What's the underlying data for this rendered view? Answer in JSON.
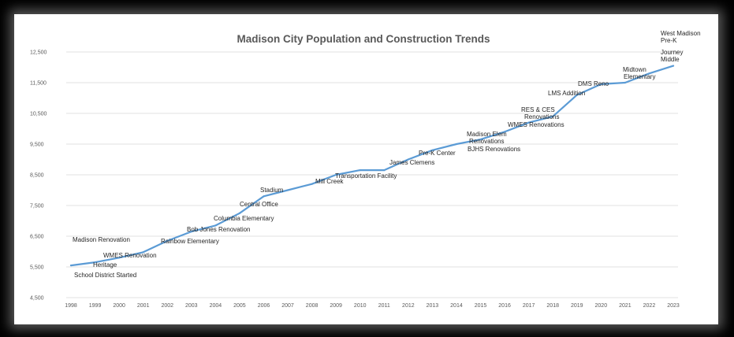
{
  "chart_data": {
    "type": "line",
    "title": "Madison City Population and Construction Trends",
    "xlabel": "",
    "ylabel": "",
    "ylim": [
      4500,
      12500
    ],
    "yticks": [
      "4,500",
      "5,500",
      "6,500",
      "7,500",
      "8,500",
      "9,500",
      "10,500",
      "11,500",
      "12,500"
    ],
    "grid": true,
    "legend": "none",
    "line_color": "#5b9bd5",
    "x": [
      "1998",
      "1999",
      "2000",
      "2001",
      "2002",
      "2003",
      "2004",
      "2005",
      "2006",
      "2007",
      "2008",
      "2009",
      "2010",
      "2011",
      "2012",
      "2013",
      "2014",
      "2015",
      "2016",
      "2017",
      "2018",
      "2019",
      "2020",
      "2021",
      "2022",
      "2023"
    ],
    "series": [
      {
        "values": [
          5550,
          5650,
          5800,
          5980,
          6350,
          6650,
          6850,
          7250,
          7800,
          8000,
          8200,
          8500,
          8650,
          8650,
          9000,
          9300,
          9500,
          9650,
          9900,
          10200,
          10400,
          11100,
          11450,
          11500,
          11800,
          12050
        ]
      }
    ],
    "annotations": [
      {
        "text": "School District Started",
        "x": "1998"
      },
      {
        "text": "Heritage",
        "x": "2000"
      },
      {
        "text": "WMES Renovation",
        "x": "2000"
      },
      {
        "text": "Madison Renovation",
        "x": "1999"
      },
      {
        "text": "Rainbow Elementary",
        "x": "2002"
      },
      {
        "text": "Bob Jones Renovation",
        "x": "2004"
      },
      {
        "text": "Columbia Elementary",
        "x": "2005"
      },
      {
        "text": "Central Office",
        "x": "2006"
      },
      {
        "text": "Stadium",
        "x": "2006"
      },
      {
        "text": "Mill Creek",
        "x": "2008"
      },
      {
        "text": "Transportation Facility",
        "x": "2010"
      },
      {
        "text": "James Clemens",
        "x": "2012"
      },
      {
        "text": "Pre-K Center",
        "x": "2013"
      },
      {
        "text": "Madison Elem",
        "x": "2015"
      },
      {
        "text": "Renovations",
        "x": "2015"
      },
      {
        "text": "BJHS Renovations",
        "x": "2015"
      },
      {
        "text": "RES & CES",
        "x": "2017"
      },
      {
        "text": "Renovations",
        "x": "2017"
      },
      {
        "text": "WMES Renovations",
        "x": "2017"
      },
      {
        "text": "LMS Addition",
        "x": "2018"
      },
      {
        "text": "DMS Reno",
        "x": "2020"
      },
      {
        "text": "Midtown",
        "x": "2021"
      },
      {
        "text": "Elementary",
        "x": "2021"
      },
      {
        "text": "Journey",
        "x": "2023"
      },
      {
        "text": "Middle",
        "x": "2023"
      },
      {
        "text": "West Madison",
        "x": "2023"
      },
      {
        "text": "Pre-K",
        "x": "2023"
      }
    ]
  }
}
